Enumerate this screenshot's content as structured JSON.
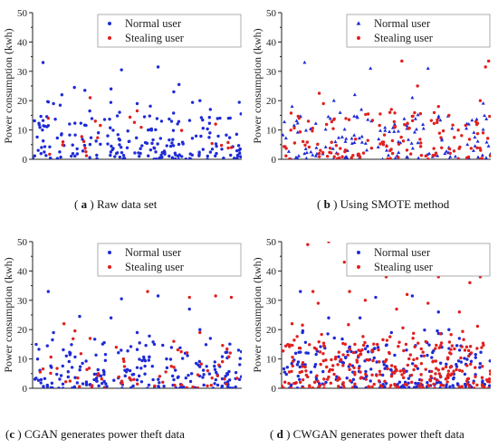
{
  "colors": {
    "normal": "#1f2bd6",
    "stealing": "#e0201e",
    "axis": "#222222",
    "legend_border": "#999999"
  },
  "captions": [
    {
      "letter": "a",
      "text": "Raw data set"
    },
    {
      "letter": "b",
      "text": "Using SMOTE method"
    },
    {
      "letter": "c",
      "text": "CGAN generates power theft data"
    },
    {
      "letter": "d",
      "text": "CWGAN generates power theft data"
    }
  ],
  "chart_data": [
    {
      "type": "scatter",
      "ylabel": "Power consumption (kwh)",
      "xlabel": "",
      "ylim": [
        0,
        50
      ],
      "yticks": [
        "0",
        "10",
        "20",
        "30",
        "40",
        "50"
      ],
      "legend_position": "top-right",
      "normal_marker": "dot",
      "series": [
        {
          "name": "Normal user",
          "count": 210,
          "seed": 11,
          "tall": [
            [
              10,
              33
            ],
            [
              85,
              30.5
            ],
            [
              120,
              31.5
            ],
            [
              75,
              24
            ],
            [
              40,
              24.5
            ],
            [
              50,
              23.5
            ],
            [
              140,
              25.5
            ],
            [
              135,
              23
            ],
            [
              28,
              22
            ],
            [
              160,
              20
            ],
            [
              100,
              19
            ],
            [
              20,
              19
            ],
            [
              170,
              17
            ]
          ]
        },
        {
          "name": "Stealing user",
          "count": 18,
          "seed": 23,
          "tall": [
            [
              55,
              21
            ],
            [
              15,
              14
            ],
            [
              100,
              16.5
            ],
            [
              175,
              12
            ],
            [
              60,
              13
            ],
            [
              190,
              4
            ]
          ]
        }
      ]
    },
    {
      "type": "scatter",
      "ylabel": "Power consumption (kwh)",
      "xlabel": "",
      "ylim": [
        0,
        50
      ],
      "yticks": [
        "0",
        "10",
        "20",
        "30",
        "40",
        "50"
      ],
      "legend_position": "top-right",
      "normal_marker": "triangle",
      "series": [
        {
          "name": "Normal user",
          "count": 140,
          "seed": 31,
          "tall": [
            [
              22,
              33
            ],
            [
              85,
              31
            ],
            [
              140,
              31
            ],
            [
              70,
              22
            ],
            [
              50,
              20
            ],
            [
              125,
              21
            ],
            [
              10,
              18
            ]
          ]
        },
        {
          "name": "Stealing user",
          "count": 140,
          "seed": 41,
          "tall": [
            [
              36,
              22.5
            ],
            [
              115,
              33.5
            ],
            [
              195,
              31.5
            ],
            [
              198,
              33.5
            ],
            [
              130,
              25
            ],
            [
              190,
              20
            ],
            [
              150,
              18
            ],
            [
              105,
              17
            ],
            [
              160,
              15
            ],
            [
              40,
              19
            ]
          ]
        }
      ]
    },
    {
      "type": "scatter",
      "ylabel": "Power consumption (kwh)",
      "xlabel": "",
      "ylim": [
        0,
        50
      ],
      "yticks": [
        "0",
        "10",
        "20",
        "30",
        "40",
        "50"
      ],
      "legend_position": "top-right",
      "normal_marker": "dot",
      "series": [
        {
          "name": "Normal user",
          "count": 210,
          "seed": 51,
          "tall": [
            [
              15,
              33
            ],
            [
              85,
              30.5
            ],
            [
              120,
              31.5
            ],
            [
              75,
              24
            ],
            [
              45,
              24.5
            ],
            [
              150,
              27
            ],
            [
              160,
              20
            ],
            [
              100,
              19
            ],
            [
              20,
              19
            ],
            [
              170,
              17
            ]
          ]
        },
        {
          "name": "Stealing user",
          "count": 60,
          "seed": 61,
          "tall": [
            [
              110,
              33
            ],
            [
              150,
              31
            ],
            [
              175,
              31.5
            ],
            [
              190,
              31
            ],
            [
              30,
              22
            ],
            [
              55,
              17
            ],
            [
              160,
              19
            ],
            [
              135,
              16
            ],
            [
              80,
              14
            ]
          ]
        }
      ]
    },
    {
      "type": "scatter",
      "ylabel": "Power consumption (kwh)",
      "xlabel": "",
      "ylim": [
        0,
        50
      ],
      "yticks": [
        "0",
        "10",
        "20",
        "30",
        "40",
        "50"
      ],
      "legend_position": "top-right",
      "normal_marker": "dot",
      "series": [
        {
          "name": "Normal user",
          "count": 210,
          "seed": 71,
          "tall": [
            [
              18,
              33
            ],
            [
              90,
              31
            ],
            [
              125,
              31.5
            ],
            [
              75,
              24
            ],
            [
              45,
              24
            ],
            [
              150,
              26
            ],
            [
              160,
              20
            ],
            [
              105,
              19
            ],
            [
              20,
              19
            ],
            [
              170,
              17
            ]
          ]
        },
        {
          "name": "Stealing user",
          "count": 300,
          "seed": 81,
          "tall": [
            [
              25,
              49
            ],
            [
              45,
              50
            ],
            [
              60,
              43
            ],
            [
              100,
              38
            ],
            [
              150,
              38
            ],
            [
              180,
              36
            ],
            [
              190,
              38
            ],
            [
              30,
              33
            ],
            [
              65,
              33
            ],
            [
              120,
              32
            ],
            [
              80,
              30
            ],
            [
              140,
              29
            ],
            [
              10,
              22
            ],
            [
              170,
              26
            ],
            [
              110,
              27
            ],
            [
              35,
              29
            ]
          ]
        }
      ]
    }
  ]
}
